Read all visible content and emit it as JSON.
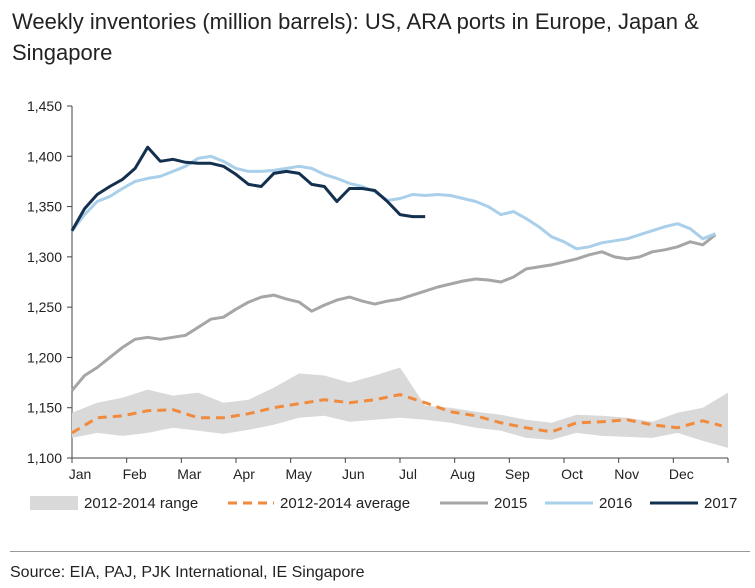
{
  "title": "Weekly inventories (million barrels): US, ARA ports in Europe, Japan & Singapore",
  "source": "Source: EIA, PAJ, PJK International, IE Singapore",
  "chart_data": {
    "type": "line",
    "title": "Weekly inventories (million barrels): US, ARA ports in Europe, Japan & Singapore",
    "xlabel": "",
    "ylabel": "",
    "ylim": [
      1100,
      1450
    ],
    "xlim": [
      0,
      52
    ],
    "yticks": [
      1100,
      1150,
      1200,
      1250,
      1300,
      1350,
      1400,
      1450
    ],
    "ytick_labels": [
      "1,100",
      "1,150",
      "1,200",
      "1,250",
      "1,300",
      "1,350",
      "1,400",
      "1,450"
    ],
    "month_labels": [
      "Jan",
      "Feb",
      "Mar",
      "Apr",
      "May",
      "Jun",
      "Jul",
      "Aug",
      "Sep",
      "Oct",
      "Nov",
      "Dec"
    ],
    "grid": false,
    "legend_position": "bottom",
    "colors": {
      "range": "#d9d9d9",
      "average": "#f08a3c",
      "s2015": "#a6a6a6",
      "s2016": "#a9cfea",
      "s2017": "#13304f",
      "axis": "#444444"
    },
    "legend": [
      "2012-2014 range",
      "2012-2014 average",
      "2015",
      "2016",
      "2017"
    ],
    "range": {
      "name": "2012-2014 range",
      "x": [
        0,
        2,
        4,
        6,
        8,
        10,
        12,
        14,
        16,
        18,
        20,
        22,
        24,
        26,
        28,
        30,
        32,
        34,
        36,
        38,
        40,
        42,
        44,
        46,
        48,
        50,
        52
      ],
      "low": [
        1120,
        1125,
        1122,
        1125,
        1130,
        1127,
        1124,
        1128,
        1133,
        1140,
        1142,
        1136,
        1138,
        1140,
        1138,
        1135,
        1130,
        1127,
        1120,
        1118,
        1125,
        1122,
        1121,
        1120,
        1125,
        1117,
        1110
      ],
      "high": [
        1145,
        1155,
        1160,
        1168,
        1162,
        1165,
        1155,
        1158,
        1170,
        1184,
        1182,
        1175,
        1182,
        1190,
        1152,
        1150,
        1146,
        1143,
        1138,
        1135,
        1143,
        1142,
        1140,
        1136,
        1145,
        1150,
        1165
      ]
    },
    "series": [
      {
        "name": "2012-2014 average",
        "style": "dashed",
        "x": [
          0,
          2,
          4,
          6,
          8,
          10,
          12,
          14,
          16,
          18,
          20,
          22,
          24,
          26,
          28,
          30,
          32,
          34,
          36,
          38,
          40,
          42,
          44,
          46,
          48,
          50,
          51.5
        ],
        "values": [
          1125,
          1140,
          1142,
          1147,
          1148,
          1140,
          1140,
          1144,
          1150,
          1154,
          1158,
          1155,
          1158,
          1163,
          1155,
          1146,
          1142,
          1135,
          1130,
          1126,
          1135,
          1136,
          1138,
          1133,
          1130,
          1137,
          1132
        ]
      },
      {
        "name": "2015",
        "style": "solid",
        "x": [
          0,
          1,
          2,
          3,
          4,
          5,
          6,
          7,
          8,
          9,
          10,
          11,
          12,
          13,
          14,
          15,
          16,
          17,
          18,
          19,
          20,
          21,
          22,
          23,
          24,
          25,
          26,
          27,
          28,
          29,
          30,
          31,
          32,
          33,
          34,
          35,
          36,
          37,
          38,
          39,
          40,
          41,
          42,
          43,
          44,
          45,
          46,
          47,
          48,
          49,
          50,
          51
        ],
        "values": [
          1167,
          1182,
          1190,
          1200,
          1210,
          1218,
          1220,
          1218,
          1220,
          1222,
          1230,
          1238,
          1240,
          1248,
          1255,
          1260,
          1262,
          1258,
          1255,
          1246,
          1252,
          1257,
          1260,
          1256,
          1253,
          1256,
          1258,
          1262,
          1266,
          1270,
          1273,
          1276,
          1278,
          1277,
          1275,
          1280,
          1288,
          1290,
          1292,
          1295,
          1298,
          1302,
          1305,
          1300,
          1298,
          1300,
          1305,
          1307,
          1310,
          1315,
          1312,
          1322
        ]
      },
      {
        "name": "2016",
        "style": "solid",
        "x": [
          0,
          1,
          2,
          3,
          4,
          5,
          6,
          7,
          8,
          9,
          10,
          11,
          12,
          13,
          14,
          15,
          16,
          17,
          18,
          19,
          20,
          21,
          22,
          23,
          24,
          25,
          26,
          27,
          28,
          29,
          30,
          31,
          32,
          33,
          34,
          35,
          36,
          37,
          38,
          39,
          40,
          41,
          42,
          43,
          44,
          45,
          46,
          47,
          48,
          49,
          50,
          51
        ],
        "values": [
          1326,
          1342,
          1355,
          1360,
          1368,
          1375,
          1378,
          1380,
          1385,
          1390,
          1398,
          1400,
          1395,
          1388,
          1385,
          1385,
          1386,
          1388,
          1390,
          1388,
          1382,
          1378,
          1373,
          1370,
          1365,
          1356,
          1358,
          1362,
          1361,
          1362,
          1361,
          1358,
          1355,
          1350,
          1342,
          1345,
          1338,
          1330,
          1320,
          1315,
          1308,
          1310,
          1314,
          1316,
          1318,
          1322,
          1326,
          1330,
          1333,
          1328,
          1318,
          1323
        ]
      },
      {
        "name": "2017",
        "style": "solid",
        "x": [
          0,
          1,
          2,
          3,
          4,
          5,
          6,
          7,
          8,
          9,
          10,
          11,
          12,
          13,
          14,
          15,
          16,
          17,
          18,
          19,
          20,
          21,
          22,
          23,
          24,
          25,
          26,
          27,
          28
        ],
        "values": [
          1326,
          1348,
          1362,
          1370,
          1377,
          1388,
          1409,
          1395,
          1397,
          1394,
          1393,
          1393,
          1390,
          1382,
          1372,
          1370,
          1383,
          1385,
          1383,
          1372,
          1370,
          1355,
          1368,
          1368,
          1366,
          1355,
          1342,
          1340,
          1340
        ]
      }
    ]
  }
}
